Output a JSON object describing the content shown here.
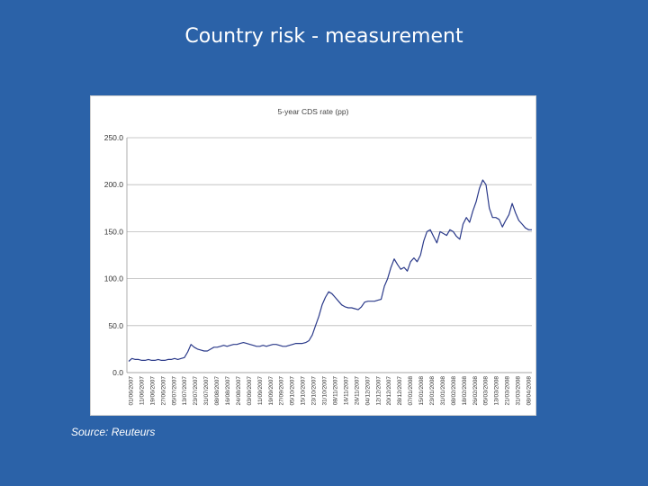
{
  "slide": {
    "title": "Country risk - measurement",
    "source": "Source: Reuteurs"
  },
  "chart_data": {
    "type": "line",
    "title": "5-year CDS rate (pp)",
    "ylim": [
      0,
      250
    ],
    "yticks": [
      "0.0",
      "50.0",
      "100.0",
      "150.0",
      "200.0",
      "250.0"
    ],
    "grid": true,
    "line_color": "#2b3a8a",
    "x_labels": [
      "01/06/2007",
      "11/06/2007",
      "19/06/2007",
      "27/06/2007",
      "05/07/2007",
      "13/07/2007",
      "23/07/2007",
      "31/07/2007",
      "08/08/2007",
      "16/08/2007",
      "24/08/2007",
      "03/09/2007",
      "11/09/2007",
      "19/09/2007",
      "27/09/2007",
      "05/10/2007",
      "15/10/2007",
      "23/10/2007",
      "31/10/2007",
      "08/11/2007",
      "16/11/2007",
      "26/11/2007",
      "04/12/2007",
      "12/12/2007",
      "20/12/2007",
      "28/12/2007",
      "07/01/2008",
      "15/01/2008",
      "23/01/2008",
      "31/01/2008",
      "08/02/2008",
      "18/02/2008",
      "26/02/2008",
      "05/03/2008",
      "13/03/2008",
      "21/03/2008",
      "31/03/2008",
      "08/04/2008"
    ],
    "y": [
      12,
      15,
      14,
      14,
      13,
      13,
      14,
      13,
      13,
      14,
      13,
      13,
      14,
      14,
      15,
      14,
      15,
      16,
      22,
      30,
      27,
      25,
      24,
      23,
      23,
      25,
      27,
      27,
      28,
      29,
      28,
      29,
      30,
      30,
      31,
      32,
      31,
      30,
      29,
      28,
      28,
      29,
      28,
      29,
      30,
      30,
      29,
      28,
      28,
      29,
      30,
      31,
      31,
      31,
      32,
      34,
      40,
      50,
      60,
      72,
      80,
      86,
      84,
      80,
      76,
      72,
      70,
      69,
      69,
      68,
      67,
      70,
      75,
      76,
      76,
      76,
      77,
      78,
      92,
      100,
      112,
      121,
      115,
      110,
      112,
      108,
      118,
      122,
      118,
      125,
      140,
      150,
      152,
      145,
      138,
      150,
      148,
      146,
      152,
      150,
      145,
      142,
      158,
      165,
      160,
      172,
      182,
      196,
      205,
      200,
      175,
      165,
      165,
      163,
      155,
      162,
      168,
      180,
      170,
      162,
      158,
      154,
      152,
      152
    ]
  }
}
